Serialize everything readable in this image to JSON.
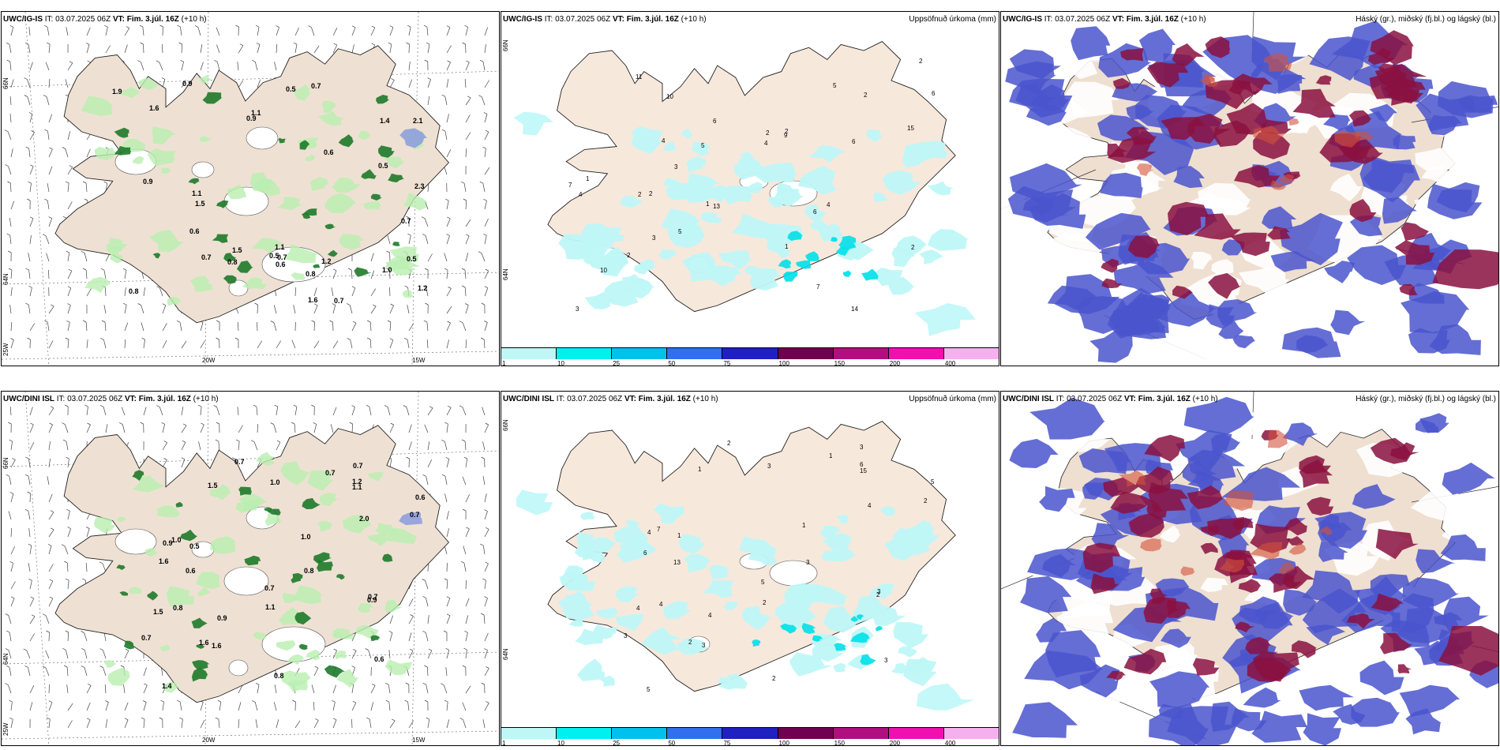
{
  "rows": [
    {
      "model": "UWC/IG-IS",
      "it_label": "IT:",
      "it_value": "03.07.2025 06Z",
      "vt_label": "VT:",
      "vt_value": "Fim. 3.júl. 16Z",
      "lead": "(+10 h)"
    },
    {
      "model": "UWC/DINI ISL",
      "it_label": "IT:",
      "it_value": "03.07.2025 06Z",
      "vt_label": "VT:",
      "vt_value": "Fim. 3.júl. 16Z",
      "lead": "(+10 h)"
    }
  ],
  "precip_title": "Uppsöfnuð úrkoma (mm)",
  "cloud_title": "Háský (gr.), miðský (fj.bl.) og lágský (bl.)",
  "axes": {
    "lat66": "66N",
    "lat64": "64N",
    "lon25": "25W",
    "lon20": "20W",
    "lon15": "15W"
  },
  "colorbar": {
    "ticks": [
      "1",
      "10",
      "25",
      "50",
      "75",
      "100",
      "150",
      "200",
      "400"
    ],
    "colors": [
      "#bff7f7",
      "#00f0f0",
      "#00c0ee",
      "#3070ee",
      "#2020c0",
      "#700050",
      "#b0107f",
      "#f010b0",
      "#f5b0f0"
    ]
  },
  "panel1_labels": [
    "1.0",
    "0.5",
    "1.1",
    "0.5",
    "1.2",
    "0.6",
    "0.7",
    "1.2",
    "1.6",
    "0.8",
    "0.9",
    "1.1",
    "0.7",
    "0.5",
    "1.5",
    "0.8",
    "0.9",
    "1.4",
    "0.7",
    "0.9",
    "2.1",
    "1.6",
    "0.6",
    "1.9",
    "0.8",
    "0.5",
    "1.1",
    "0.7",
    "1.5",
    "0.6",
    "0.7",
    "2.3"
  ],
  "panel4_labels": [
    "0.8",
    "1.6",
    "0.5",
    "2.0",
    "0.7",
    "1.4",
    "0.7",
    "0.9",
    "1.2",
    "0.7",
    "1.0",
    "1.5",
    "0.7",
    "0.8",
    "1.0",
    "0.6",
    "0.9",
    "1.1",
    "0.6",
    "1.0",
    "1.6",
    "0.7",
    "0.6",
    "1.5",
    "0.7",
    "1.6",
    "0.7",
    "1.1",
    "0.8",
    "0.9"
  ],
  "panel2_labels": [
    "2",
    "5",
    "6",
    "4",
    "10",
    "2",
    "1",
    "2",
    "3",
    "5",
    "11",
    "4",
    "7",
    "2",
    "6",
    "4",
    "3",
    "2",
    "5",
    "2",
    "14",
    "13",
    "10",
    "15",
    "6",
    "1",
    "2",
    "1",
    "9",
    "2",
    "4",
    "3",
    "6",
    "7"
  ],
  "panel5_labels": [
    "2",
    "3",
    "1",
    "4",
    "2",
    "5",
    "3",
    "4",
    "6",
    "2",
    "3",
    "1",
    "5",
    "4",
    "7",
    "3",
    "2",
    "15",
    "13",
    "1",
    "2",
    "3",
    "5",
    "4",
    "3",
    "6",
    "1",
    "2",
    "3",
    "4"
  ]
}
